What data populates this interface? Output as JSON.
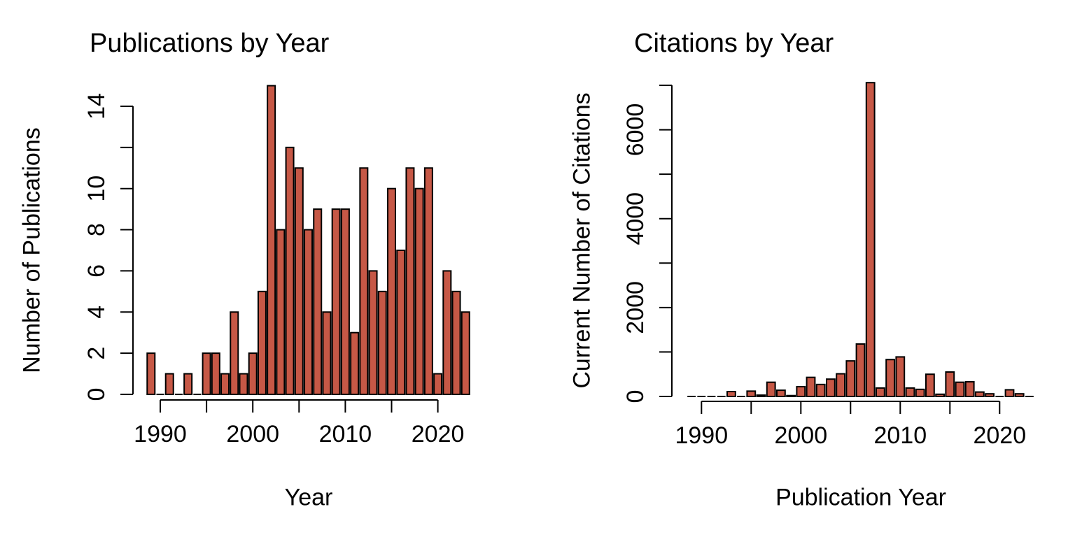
{
  "figure": {
    "background": "#ffffff",
    "bar_fill": "#C65846",
    "bar_border": "#000000",
    "text_color": "#000000"
  },
  "chart_data": [
    {
      "type": "bar",
      "title": "Publications by Year",
      "xlabel": "Year",
      "ylabel": "Number of Publications",
      "x": [
        1989,
        1990,
        1991,
        1992,
        1993,
        1994,
        1995,
        1996,
        1997,
        1998,
        1999,
        2000,
        2001,
        2002,
        2003,
        2004,
        2005,
        2006,
        2007,
        2008,
        2009,
        2010,
        2011,
        2012,
        2013,
        2014,
        2015,
        2016,
        2017,
        2018,
        2019,
        2020,
        2021,
        2022,
        2023
      ],
      "values": [
        2,
        0,
        1,
        0,
        1,
        0,
        2,
        2,
        1,
        4,
        1,
        2,
        5,
        15,
        8,
        12,
        11,
        8,
        9,
        4,
        9,
        9,
        3,
        11,
        6,
        5,
        10,
        7,
        11,
        10,
        11,
        1,
        6,
        5,
        4
      ],
      "ylim": [
        0,
        15
      ],
      "grid": false,
      "legend": null,
      "y_ticks": [
        0,
        2,
        4,
        6,
        8,
        10,
        12,
        14
      ],
      "y_tick_labels": [
        "0",
        "2",
        "4",
        "6",
        "8",
        "10",
        "",
        "14"
      ],
      "x_ticks": [
        1990,
        1995,
        2000,
        2005,
        2010,
        2015,
        2020
      ],
      "x_tick_labels": [
        "1990",
        "",
        "2000",
        "",
        "2010",
        "",
        "2020"
      ]
    },
    {
      "type": "bar",
      "title": "Citations by Year",
      "xlabel": "Publication Year",
      "ylabel": "Current Number of Citations",
      "x": [
        1989,
        1990,
        1991,
        1992,
        1993,
        1994,
        1995,
        1996,
        1997,
        1998,
        1999,
        2000,
        2001,
        2002,
        2003,
        2004,
        2005,
        2006,
        2007,
        2008,
        2009,
        2010,
        2011,
        2012,
        2013,
        2014,
        2015,
        2016,
        2017,
        2018,
        2019,
        2020,
        2021,
        2022,
        2023
      ],
      "values": [
        10,
        0,
        10,
        0,
        110,
        5,
        120,
        30,
        320,
        140,
        20,
        220,
        430,
        270,
        390,
        510,
        800,
        1180,
        7060,
        190,
        830,
        890,
        190,
        160,
        500,
        50,
        550,
        320,
        330,
        100,
        60,
        10,
        150,
        60,
        10
      ],
      "ylim": [
        0,
        7100
      ],
      "grid": false,
      "legend": null,
      "y_ticks": [
        0,
        1000,
        2000,
        3000,
        4000,
        5000,
        6000,
        7000
      ],
      "y_tick_labels": [
        "0",
        "",
        "2000",
        "",
        "4000",
        "",
        "6000",
        ""
      ],
      "x_ticks": [
        1990,
        1995,
        2000,
        2005,
        2010,
        2015,
        2020
      ],
      "x_tick_labels": [
        "1990",
        "",
        "2000",
        "",
        "2010",
        "",
        "2020"
      ]
    }
  ]
}
